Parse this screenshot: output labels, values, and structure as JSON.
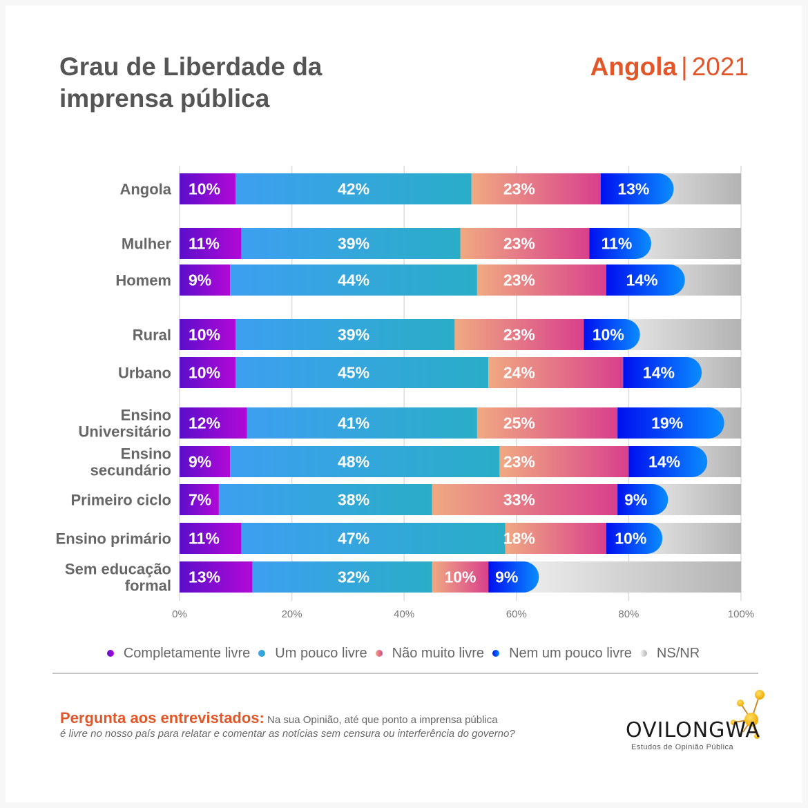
{
  "header": {
    "title_line1": "Grau de Liberdade da",
    "title_line2": "imprensa pública",
    "country": "Angola",
    "separator": "|",
    "year": "2021"
  },
  "colors": {
    "accent": "#e2572a",
    "completamente_livre": [
      "#5b0ecb",
      "#b209d6"
    ],
    "um_pouco_livre": [
      "#3d9ff0",
      "#2aadc7"
    ],
    "nao_muito_livre": [
      "#f0a982",
      "#d8408c"
    ],
    "nem_um_pouco_livre": [
      "#0010f0",
      "#0a8cff"
    ],
    "ns_nr": [
      "#f7f7f7",
      "#b3b3b3"
    ]
  },
  "chart_data": {
    "type": "bar",
    "orientation": "horizontal",
    "stacked": true,
    "title": "Grau de Liberdade da imprensa pública",
    "xlabel": "",
    "ylabel": "",
    "xlim": [
      0,
      100
    ],
    "x_ticks": [
      "0%",
      "20%",
      "40%",
      "60%",
      "80%",
      "100%"
    ],
    "grid": true,
    "legend_position": "bottom",
    "categories": [
      "Angola",
      "Mulher",
      "Homem",
      "Rural",
      "Urbano",
      "Ensino Universitário",
      "Ensino secundário",
      "Primeiro ciclo",
      "Ensino primário",
      "Sem educação formal"
    ],
    "category_lines": [
      [
        "Angola"
      ],
      [
        "Mulher"
      ],
      [
        "Homem"
      ],
      [
        "Rural"
      ],
      [
        "Urbano"
      ],
      [
        "Ensino",
        "Universitário"
      ],
      [
        "Ensino",
        "secundário"
      ],
      [
        "Primeiro ciclo"
      ],
      [
        "Ensino primário"
      ],
      [
        "Sem educação",
        "formal"
      ]
    ],
    "series": [
      {
        "name": "Completamente livre",
        "values": [
          10,
          11,
          9,
          10,
          10,
          12,
          9,
          7,
          11,
          13
        ]
      },
      {
        "name": "Um pouco livre",
        "values": [
          42,
          39,
          44,
          39,
          45,
          41,
          48,
          38,
          47,
          32
        ]
      },
      {
        "name": "Não muito livre",
        "values": [
          23,
          23,
          23,
          23,
          24,
          25,
          23,
          33,
          18,
          10
        ]
      },
      {
        "name": "Nem um pouco livre",
        "values": [
          13,
          11,
          14,
          10,
          14,
          19,
          14,
          9,
          10,
          9
        ]
      },
      {
        "name": "NS/NR",
        "values": [
          12,
          16,
          10,
          18,
          7,
          3,
          6,
          13,
          14,
          36
        ]
      }
    ],
    "data_labels": [
      [
        "10%",
        "42%",
        "23%",
        "13%"
      ],
      [
        "11%",
        "39%",
        "23%",
        "11%"
      ],
      [
        "9%",
        "44%",
        "23%",
        "14%"
      ],
      [
        "10%",
        "39%",
        "23%",
        "10%"
      ],
      [
        "10%",
        "45%",
        "24%",
        "14%"
      ],
      [
        "12%",
        "41%",
        "25%",
        "19%"
      ],
      [
        "9%",
        "48%",
        "23%",
        "14%"
      ],
      [
        "7%",
        "38%",
        "33%",
        "9%"
      ],
      [
        "11%",
        "47%",
        "18%",
        "10%"
      ],
      [
        "13%",
        "32%",
        "10%",
        "9%"
      ]
    ]
  },
  "legend": [
    {
      "label": "Completamente livre"
    },
    {
      "label": "Um pouco livre"
    },
    {
      "label": "Não muito livre"
    },
    {
      "label": "Nem um pouco livre"
    },
    {
      "label": "NS/NR"
    }
  ],
  "footer": {
    "question_label": "Pergunta aos entrevistados:",
    "question_text_1": "Na sua Opinião, até que ponto a imprensa pública",
    "question_text_2": "é livre no nosso país para relatar e comentar as notícias sem censura ou interferência do governo?",
    "logo_name": "OVILONGWA",
    "logo_tagline": "Estudos de Opinião Pública"
  }
}
